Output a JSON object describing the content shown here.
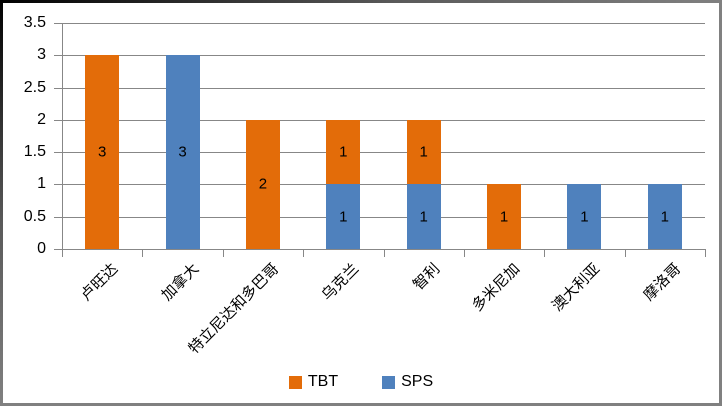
{
  "chart_data": {
    "type": "bar",
    "stacked": true,
    "title": "",
    "xlabel": "",
    "ylabel": "",
    "categories": [
      "卢旺达",
      "加拿大",
      "特立尼达和多巴哥",
      "乌克兰",
      "智利",
      "多米尼加",
      "澳大利亚",
      "摩洛哥"
    ],
    "series": [
      {
        "name": "TBT",
        "color": "#E36C09",
        "values": [
          3,
          0,
          2,
          1,
          1,
          1,
          0,
          0
        ]
      },
      {
        "name": "SPS",
        "color": "#4F81BD",
        "values": [
          0,
          3,
          0,
          1,
          1,
          0,
          1,
          1
        ]
      }
    ],
    "stack_order": [
      "SPS",
      "TBT"
    ],
    "totals": [
      3,
      3,
      2,
      2,
      2,
      1,
      1,
      1
    ],
    "ylim": [
      0,
      3.5
    ],
    "y_ticks": [
      0,
      0.5,
      1,
      1.5,
      2,
      2.5,
      3,
      3.5
    ],
    "y_tick_labels": [
      "0",
      "0.5",
      "1",
      "1.5",
      "2",
      "2.5",
      "3",
      "3.5"
    ],
    "grid": true,
    "data_labels": true,
    "legend_position": "bottom",
    "colors": {
      "gridline": "#878787",
      "axis": "#878787",
      "text": "#000000",
      "background": "#FFFFFF"
    }
  }
}
